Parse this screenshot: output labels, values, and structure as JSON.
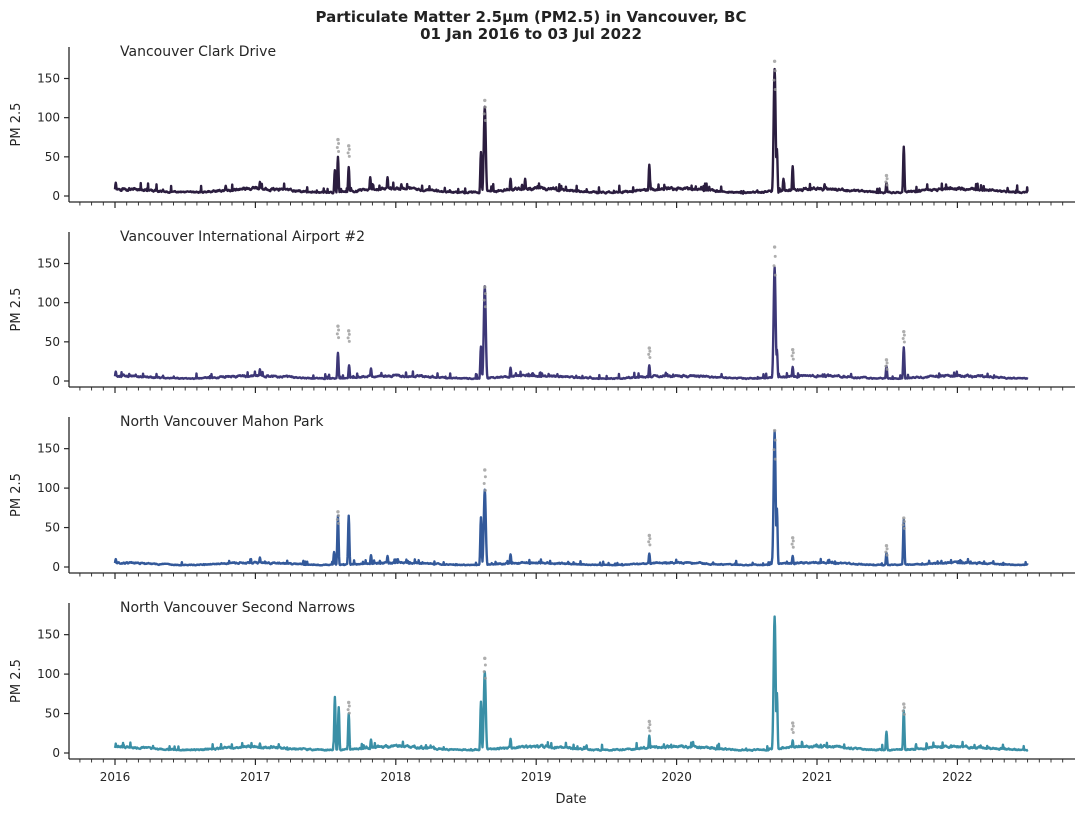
{
  "chart_data": {
    "type": "line",
    "title": "Particulate Matter 2.5µm (PM2.5) in Vancouver, BC",
    "subtitle": "01 Jan 2016 to 03 Jul 2022",
    "xlabel": "Date",
    "ylabel": "PM 2.5",
    "x_range": [
      "2016-01-01",
      "2022-07-03"
    ],
    "x_ticks": [
      "2016",
      "2017",
      "2018",
      "2019",
      "2020",
      "2021",
      "2022"
    ],
    "ylim": [
      0,
      180
    ],
    "y_ticks": [
      0,
      50,
      100,
      150
    ],
    "grid": false,
    "background": "#ffffff",
    "panels": [
      {
        "station": "Vancouver Clark Drive",
        "color": "#2b1d3f",
        "baseline": 7,
        "peaks": [
          {
            "date": "2016-01-03",
            "value": 17
          },
          {
            "date": "2016-10-15",
            "value": 13
          },
          {
            "date": "2017-01-12",
            "value": 18
          },
          {
            "date": "2017-07-26",
            "value": 33
          },
          {
            "date": "2017-08-03",
            "value": 50
          },
          {
            "date": "2017-08-31",
            "value": 37
          },
          {
            "date": "2017-10-26",
            "value": 24
          },
          {
            "date": "2017-12-10",
            "value": 24
          },
          {
            "date": "2018-01-15",
            "value": 15
          },
          {
            "date": "2018-08-10",
            "value": 56
          },
          {
            "date": "2018-08-20",
            "value": 114
          },
          {
            "date": "2018-10-26",
            "value": 22
          },
          {
            "date": "2018-12-03",
            "value": 22
          },
          {
            "date": "2019-10-22",
            "value": 40
          },
          {
            "date": "2020-09-12",
            "value": 162
          },
          {
            "date": "2020-09-18",
            "value": 60
          },
          {
            "date": "2020-10-05",
            "value": 22
          },
          {
            "date": "2020-10-29",
            "value": 38
          },
          {
            "date": "2021-01-20",
            "value": 15
          },
          {
            "date": "2021-06-30",
            "value": 17
          },
          {
            "date": "2021-08-14",
            "value": 63
          }
        ],
        "outliers": [
          {
            "date": "2017-08-03",
            "value": 72
          },
          {
            "date": "2017-08-31",
            "value": 64
          },
          {
            "date": "2018-08-20",
            "value": 122
          },
          {
            "date": "2020-09-12",
            "value": 172
          },
          {
            "date": "2021-06-30",
            "value": 26
          }
        ]
      },
      {
        "station": "Vancouver International Airport #2",
        "color": "#3d3777",
        "baseline": 5,
        "peaks": [
          {
            "date": "2016-01-03",
            "value": 12
          },
          {
            "date": "2017-01-12",
            "value": 15
          },
          {
            "date": "2017-08-03",
            "value": 36
          },
          {
            "date": "2017-09-01",
            "value": 20
          },
          {
            "date": "2017-10-28",
            "value": 16
          },
          {
            "date": "2018-08-10",
            "value": 44
          },
          {
            "date": "2018-08-20",
            "value": 121
          },
          {
            "date": "2018-10-26",
            "value": 17
          },
          {
            "date": "2019-10-22",
            "value": 20
          },
          {
            "date": "2020-09-12",
            "value": 145
          },
          {
            "date": "2020-09-18",
            "value": 40
          },
          {
            "date": "2020-10-29",
            "value": 18
          },
          {
            "date": "2021-06-30",
            "value": 19
          },
          {
            "date": "2021-08-14",
            "value": 43
          }
        ],
        "outliers": [
          {
            "date": "2017-08-03",
            "value": 70
          },
          {
            "date": "2017-08-31",
            "value": 64
          },
          {
            "date": "2018-08-20",
            "value": 120
          },
          {
            "date": "2019-10-22",
            "value": 42
          },
          {
            "date": "2020-09-12",
            "value": 171
          },
          {
            "date": "2020-10-29",
            "value": 40
          },
          {
            "date": "2021-06-30",
            "value": 27
          },
          {
            "date": "2021-08-14",
            "value": 63
          }
        ]
      },
      {
        "station": "North Vancouver Mahon Park",
        "color": "#33599a",
        "baseline": 4,
        "peaks": [
          {
            "date": "2016-01-03",
            "value": 10
          },
          {
            "date": "2017-01-12",
            "value": 12
          },
          {
            "date": "2017-07-24",
            "value": 19
          },
          {
            "date": "2017-08-03",
            "value": 65
          },
          {
            "date": "2017-08-31",
            "value": 65
          },
          {
            "date": "2017-10-28",
            "value": 15
          },
          {
            "date": "2017-12-10",
            "value": 14
          },
          {
            "date": "2018-08-10",
            "value": 63
          },
          {
            "date": "2018-08-20",
            "value": 98
          },
          {
            "date": "2018-10-26",
            "value": 16
          },
          {
            "date": "2019-10-22",
            "value": 17
          },
          {
            "date": "2020-09-12",
            "value": 172
          },
          {
            "date": "2020-09-18",
            "value": 74
          },
          {
            "date": "2020-10-29",
            "value": 14
          },
          {
            "date": "2021-06-30",
            "value": 18
          },
          {
            "date": "2021-08-14",
            "value": 60
          }
        ],
        "outliers": [
          {
            "date": "2017-08-03",
            "value": 70
          },
          {
            "date": "2018-08-20",
            "value": 123
          },
          {
            "date": "2019-10-22",
            "value": 40
          },
          {
            "date": "2020-09-12",
            "value": 173
          },
          {
            "date": "2020-10-29",
            "value": 37
          },
          {
            "date": "2021-06-30",
            "value": 27
          },
          {
            "date": "2021-08-14",
            "value": 62
          }
        ]
      },
      {
        "station": "North Vancouver Second Narrows",
        "color": "#3a8fa6",
        "baseline": 6,
        "peaks": [
          {
            "date": "2016-01-03",
            "value": 10
          },
          {
            "date": "2017-01-12",
            "value": 12
          },
          {
            "date": "2017-07-26",
            "value": 71
          },
          {
            "date": "2017-08-05",
            "value": 58
          },
          {
            "date": "2017-08-31",
            "value": 50
          },
          {
            "date": "2017-10-28",
            "value": 17
          },
          {
            "date": "2018-08-10",
            "value": 65
          },
          {
            "date": "2018-08-20",
            "value": 103
          },
          {
            "date": "2018-10-26",
            "value": 18
          },
          {
            "date": "2019-10-22",
            "value": 22
          },
          {
            "date": "2020-09-12",
            "value": 173
          },
          {
            "date": "2020-09-18",
            "value": 76
          },
          {
            "date": "2020-10-29",
            "value": 16
          },
          {
            "date": "2021-06-30",
            "value": 27
          },
          {
            "date": "2021-08-14",
            "value": 54
          }
        ],
        "outliers": [
          {
            "date": "2017-08-31",
            "value": 64
          },
          {
            "date": "2018-08-20",
            "value": 120
          },
          {
            "date": "2019-10-22",
            "value": 40
          },
          {
            "date": "2020-10-29",
            "value": 38
          },
          {
            "date": "2021-08-14",
            "value": 62
          }
        ]
      }
    ]
  }
}
